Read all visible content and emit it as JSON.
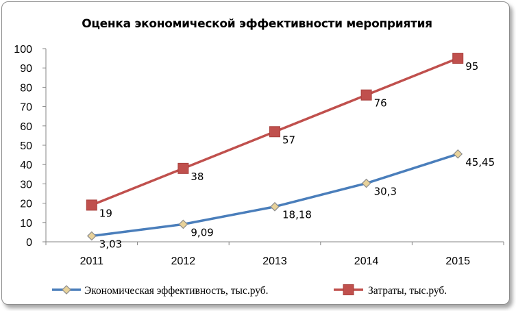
{
  "chart_data": {
    "type": "line",
    "title": "Оценка экономической эффективности мероприятия",
    "categories": [
      "2011",
      "2012",
      "2013",
      "2014",
      "2015"
    ],
    "ylim": [
      0,
      100
    ],
    "yticks": [
      0,
      10,
      20,
      30,
      40,
      50,
      60,
      70,
      80,
      90,
      100
    ],
    "grid": false,
    "legend": "bottom",
    "series": [
      {
        "name": "Экономическая эффективность, тыс.руб.",
        "values": [
          3.03,
          9.09,
          18.18,
          30.3,
          45.45
        ],
        "labels": [
          "3,03",
          "9,09",
          "18,18",
          "30,3",
          "45,45"
        ],
        "color": "#4a7ebb",
        "marker": "diamond",
        "marker_fill": "#e8d29a"
      },
      {
        "name": "Затраты, тыс.руб.",
        "values": [
          19,
          38,
          57,
          76,
          95
        ],
        "labels": [
          "19",
          "38",
          "57",
          "76",
          "95"
        ],
        "color": "#c0504d",
        "marker": "square",
        "marker_fill": "#c0504d"
      }
    ]
  }
}
